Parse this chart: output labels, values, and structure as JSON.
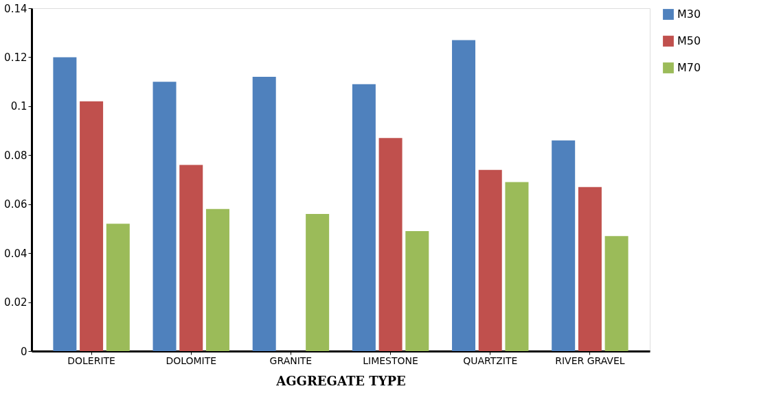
{
  "chart_data": {
    "type": "bar",
    "xlabel": "AGGREGATE TYPE",
    "categories": [
      "DOLERITE",
      "DOLOMITE",
      "GRANITE",
      "LIMESTONE",
      "QUARTZITE",
      "RIVER GRAVEL"
    ],
    "series": [
      {
        "name": "M30",
        "color": "#4f81bd",
        "values": [
          0.12,
          0.11,
          0.112,
          0.109,
          0.127,
          0.086
        ]
      },
      {
        "name": "M50",
        "color": "#c0504d",
        "values": [
          0.102,
          0.076,
          null,
          0.087,
          0.074,
          0.067
        ]
      },
      {
        "name": "M70",
        "color": "#9bbb59",
        "values": [
          0.052,
          0.058,
          0.056,
          0.049,
          0.069,
          0.047
        ]
      }
    ],
    "ylim": [
      0,
      0.14
    ],
    "yticks": [
      0,
      0.02,
      0.04,
      0.06,
      0.08,
      0.1,
      0.12,
      0.14
    ],
    "grid": false,
    "legend": "right"
  }
}
